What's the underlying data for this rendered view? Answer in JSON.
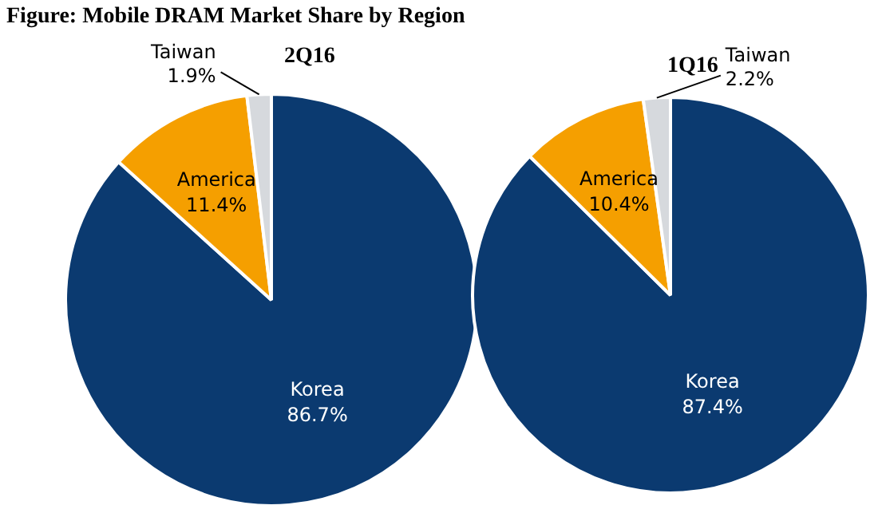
{
  "chart_data": [
    {
      "type": "pie",
      "title": "Figure: Mobile DRAM Market Share by Region",
      "subtitle": "2Q16",
      "categories": [
        "Korea",
        "America",
        "Taiwan"
      ],
      "values": [
        86.7,
        11.4,
        1.9
      ],
      "value_labels": [
        "86.7%",
        "11.4%",
        "1.9%"
      ],
      "colors": [
        "#0b3a70",
        "#f59f00",
        "#d6d9dd"
      ],
      "legend": false
    },
    {
      "type": "pie",
      "subtitle": "1Q16",
      "categories": [
        "Korea",
        "America",
        "Taiwan"
      ],
      "values": [
        87.4,
        10.4,
        2.2
      ],
      "value_labels": [
        "87.4%",
        "10.4%",
        "2.2%"
      ],
      "colors": [
        "#0b3a70",
        "#f59f00",
        "#d6d9dd"
      ],
      "legend": false
    }
  ]
}
